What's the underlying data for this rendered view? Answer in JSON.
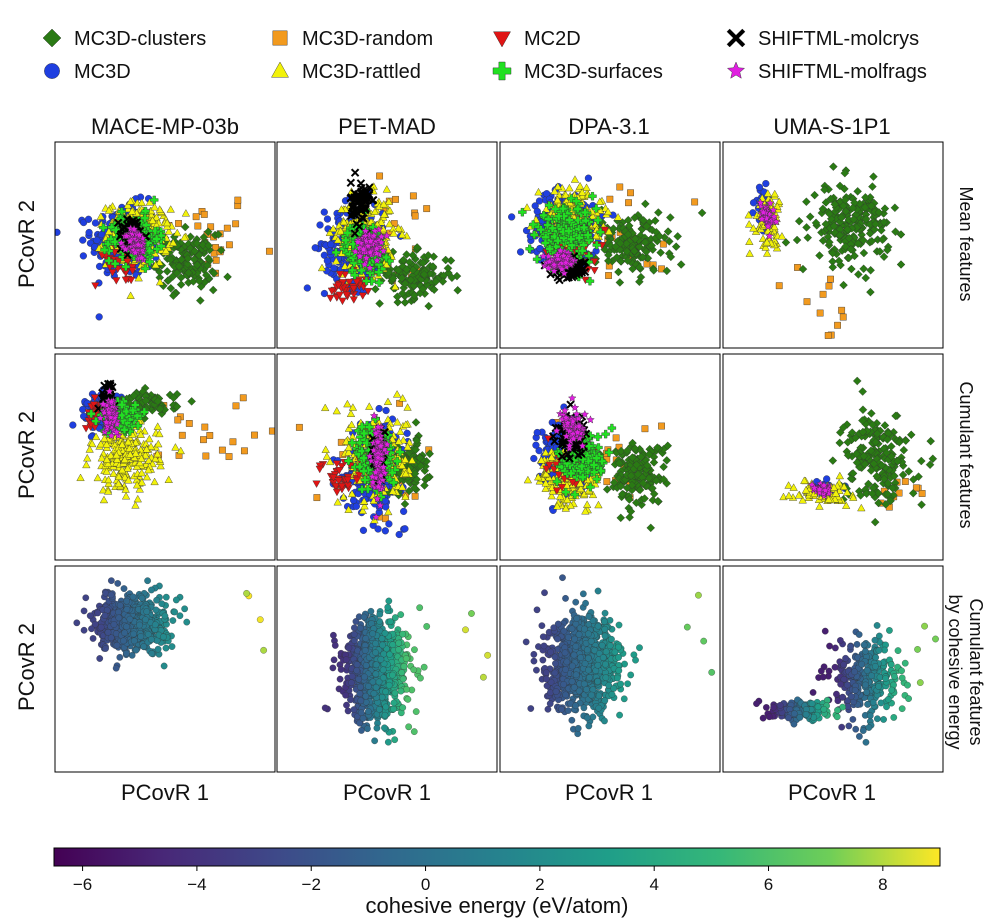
{
  "chart_data": {
    "type": "scatter",
    "panel_kind": "pcovr-projection-grid",
    "legend": [
      {
        "name": "MC3D-clusters",
        "marker": "diamond",
        "color": "#2a7a14"
      },
      {
        "name": "MC3D",
        "marker": "circle",
        "color": "#1f3fe0"
      },
      {
        "name": "MC3D-random",
        "marker": "square",
        "color": "#f29a1e"
      },
      {
        "name": "MC3D-rattled",
        "marker": "triangle-up",
        "color": "#f2f20a"
      },
      {
        "name": "MC2D",
        "marker": "triangle-down",
        "color": "#e01414"
      },
      {
        "name": "MC3D-surfaces",
        "marker": "plus",
        "color": "#22e022"
      },
      {
        "name": "SHIFTML-molcrys",
        "marker": "x",
        "color": "#000000"
      },
      {
        "name": "SHIFTML-molfrags",
        "marker": "star",
        "color": "#e020e0"
      }
    ],
    "columns": [
      "MACE-MP-03b",
      "PET-MAD",
      "DPA-3.1",
      "UMA-S-1P1"
    ],
    "rows": [
      {
        "label": "Mean features",
        "mode": "category"
      },
      {
        "label": "Cumulant features",
        "mode": "category"
      },
      {
        "label": "Cumulant features by cohesive energy",
        "mode": "energy"
      }
    ],
    "xlabel": "PCovR 1",
    "ylabel": "PCovR 2",
    "colorbar": {
      "label": "cohesive energy (eV/atom)",
      "range": [
        -6.5,
        9
      ],
      "ticks": [
        -6,
        -4,
        -2,
        0,
        2,
        4,
        6,
        8
      ],
      "tick_labels": [
        "−6",
        "−4",
        "−2",
        "0",
        "2",
        "4",
        "6",
        "8"
      ],
      "colormap": "viridis"
    },
    "axis_ranges_note": "Axes have no tick labels; coordinates are normalized 0-1 within each panel.",
    "panels": [
      {
        "column": "MACE-MP-03b",
        "row": "Mean features",
        "clouds": [
          {
            "series": "MC3D",
            "cx": 0.32,
            "cy": 0.52,
            "sx": 0.14,
            "sy": 0.16,
            "n": 280
          },
          {
            "series": "MC3D-rattled",
            "cx": 0.38,
            "cy": 0.55,
            "sx": 0.13,
            "sy": 0.14,
            "n": 260
          },
          {
            "series": "MC3D-surfaces",
            "cx": 0.36,
            "cy": 0.53,
            "sx": 0.1,
            "sy": 0.1,
            "n": 160
          },
          {
            "series": "MC2D",
            "cx": 0.3,
            "cy": 0.42,
            "sx": 0.12,
            "sy": 0.1,
            "n": 40
          },
          {
            "series": "MC3D-clusters",
            "cx": 0.6,
            "cy": 0.42,
            "sx": 0.12,
            "sy": 0.12,
            "n": 140
          },
          {
            "series": "MC3D-random",
            "cx": 0.7,
            "cy": 0.55,
            "sx": 0.18,
            "sy": 0.2,
            "n": 25
          },
          {
            "series": "SHIFTML-molcrys",
            "cx": 0.35,
            "cy": 0.55,
            "sx": 0.05,
            "sy": 0.08,
            "n": 60
          },
          {
            "series": "SHIFTML-molfrags",
            "cx": 0.37,
            "cy": 0.5,
            "sx": 0.04,
            "sy": 0.07,
            "n": 80
          }
        ]
      },
      {
        "column": "PET-MAD",
        "row": "Mean features",
        "clouds": [
          {
            "series": "MC3D",
            "cx": 0.35,
            "cy": 0.5,
            "sx": 0.12,
            "sy": 0.18,
            "n": 220
          },
          {
            "series": "MC3D-rattled",
            "cx": 0.4,
            "cy": 0.55,
            "sx": 0.12,
            "sy": 0.16,
            "n": 240
          },
          {
            "series": "MC3D-surfaces",
            "cx": 0.4,
            "cy": 0.48,
            "sx": 0.08,
            "sy": 0.12,
            "n": 150
          },
          {
            "series": "MC2D",
            "cx": 0.32,
            "cy": 0.3,
            "sx": 0.08,
            "sy": 0.06,
            "n": 40
          },
          {
            "series": "MC3D-clusters",
            "cx": 0.62,
            "cy": 0.35,
            "sx": 0.16,
            "sy": 0.1,
            "n": 140
          },
          {
            "series": "MC3D-random",
            "cx": 0.55,
            "cy": 0.55,
            "sx": 0.25,
            "sy": 0.25,
            "n": 25
          },
          {
            "series": "SHIFTML-molcrys",
            "cx": 0.38,
            "cy": 0.7,
            "sx": 0.04,
            "sy": 0.1,
            "n": 70
          },
          {
            "series": "SHIFTML-molfrags",
            "cx": 0.42,
            "cy": 0.5,
            "sx": 0.05,
            "sy": 0.07,
            "n": 80
          }
        ]
      },
      {
        "column": "DPA-3.1",
        "row": "Mean features",
        "clouds": [
          {
            "series": "MC3D",
            "cx": 0.3,
            "cy": 0.6,
            "sx": 0.14,
            "sy": 0.14,
            "n": 280
          },
          {
            "series": "MC3D-rattled",
            "cx": 0.32,
            "cy": 0.62,
            "sx": 0.13,
            "sy": 0.14,
            "n": 260
          },
          {
            "series": "MC3D-surfaces",
            "cx": 0.3,
            "cy": 0.55,
            "sx": 0.12,
            "sy": 0.12,
            "n": 180
          },
          {
            "series": "MC2D",
            "cx": 0.35,
            "cy": 0.45,
            "sx": 0.12,
            "sy": 0.1,
            "n": 40
          },
          {
            "series": "MC3D-clusters",
            "cx": 0.6,
            "cy": 0.5,
            "sx": 0.16,
            "sy": 0.13,
            "n": 160
          },
          {
            "series": "MC3D-random",
            "cx": 0.55,
            "cy": 0.55,
            "sx": 0.25,
            "sy": 0.25,
            "n": 20
          },
          {
            "series": "SHIFTML-molcrys",
            "cx": 0.32,
            "cy": 0.38,
            "sx": 0.08,
            "sy": 0.04,
            "n": 60
          },
          {
            "series": "SHIFTML-molfrags",
            "cx": 0.28,
            "cy": 0.42,
            "sx": 0.06,
            "sy": 0.04,
            "n": 80
          }
        ]
      },
      {
        "column": "UMA-S-1P1",
        "row": "Mean features",
        "clouds": [
          {
            "series": "MC3D-clusters",
            "cx": 0.58,
            "cy": 0.6,
            "sx": 0.16,
            "sy": 0.17,
            "n": 220
          },
          {
            "series": "MC3D-rattled",
            "cx": 0.2,
            "cy": 0.62,
            "sx": 0.06,
            "sy": 0.12,
            "n": 80
          },
          {
            "series": "MC3D",
            "cx": 0.18,
            "cy": 0.7,
            "sx": 0.03,
            "sy": 0.07,
            "n": 40
          },
          {
            "series": "SHIFTML-molfrags",
            "cx": 0.2,
            "cy": 0.65,
            "sx": 0.03,
            "sy": 0.06,
            "n": 40
          },
          {
            "series": "MC3D-random",
            "cx": 0.5,
            "cy": 0.2,
            "sx": 0.15,
            "sy": 0.15,
            "n": 12
          }
        ]
      },
      {
        "column": "MACE-MP-03b",
        "row": "Cumulant features",
        "clouds": [
          {
            "series": "MC3D-rattled",
            "cx": 0.32,
            "cy": 0.5,
            "sx": 0.14,
            "sy": 0.15,
            "n": 230
          },
          {
            "series": "MC3D",
            "cx": 0.22,
            "cy": 0.72,
            "sx": 0.07,
            "sy": 0.08,
            "n": 160
          },
          {
            "series": "MC3D-surfaces",
            "cx": 0.3,
            "cy": 0.7,
            "sx": 0.08,
            "sy": 0.07,
            "n": 140
          },
          {
            "series": "MC3D-clusters",
            "cx": 0.42,
            "cy": 0.76,
            "sx": 0.12,
            "sy": 0.05,
            "n": 90
          },
          {
            "series": "MC2D",
            "cx": 0.2,
            "cy": 0.7,
            "sx": 0.06,
            "sy": 0.06,
            "n": 30
          },
          {
            "series": "MC3D-random",
            "cx": 0.7,
            "cy": 0.6,
            "sx": 0.2,
            "sy": 0.2,
            "n": 20
          },
          {
            "series": "SHIFTML-molcrys",
            "cx": 0.24,
            "cy": 0.8,
            "sx": 0.03,
            "sy": 0.06,
            "n": 40
          },
          {
            "series": "SHIFTML-molfrags",
            "cx": 0.25,
            "cy": 0.7,
            "sx": 0.03,
            "sy": 0.07,
            "n": 70
          }
        ]
      },
      {
        "column": "PET-MAD",
        "row": "Cumulant features",
        "clouds": [
          {
            "series": "MC3D",
            "cx": 0.45,
            "cy": 0.45,
            "sx": 0.12,
            "sy": 0.2,
            "n": 240
          },
          {
            "series": "MC3D-rattled",
            "cx": 0.45,
            "cy": 0.5,
            "sx": 0.13,
            "sy": 0.2,
            "n": 260
          },
          {
            "series": "MC3D-surfaces",
            "cx": 0.45,
            "cy": 0.5,
            "sx": 0.08,
            "sy": 0.15,
            "n": 150
          },
          {
            "series": "MC2D",
            "cx": 0.3,
            "cy": 0.4,
            "sx": 0.08,
            "sy": 0.1,
            "n": 40
          },
          {
            "series": "MC3D-clusters",
            "cx": 0.6,
            "cy": 0.45,
            "sx": 0.08,
            "sy": 0.12,
            "n": 110
          },
          {
            "series": "MC3D-random",
            "cx": 0.45,
            "cy": 0.45,
            "sx": 0.25,
            "sy": 0.22,
            "n": 25
          },
          {
            "series": "SHIFTML-molcrys",
            "cx": 0.46,
            "cy": 0.5,
            "sx": 0.02,
            "sy": 0.12,
            "n": 60
          },
          {
            "series": "SHIFTML-molfrags",
            "cx": 0.46,
            "cy": 0.5,
            "sx": 0.025,
            "sy": 0.15,
            "n": 90
          }
        ]
      },
      {
        "column": "DPA-3.1",
        "row": "Cumulant features",
        "clouds": [
          {
            "series": "MC3D",
            "cx": 0.28,
            "cy": 0.5,
            "sx": 0.1,
            "sy": 0.15,
            "n": 220
          },
          {
            "series": "MC3D-rattled",
            "cx": 0.32,
            "cy": 0.4,
            "sx": 0.12,
            "sy": 0.13,
            "n": 220
          },
          {
            "series": "MC3D-surfaces",
            "cx": 0.38,
            "cy": 0.5,
            "sx": 0.1,
            "sy": 0.12,
            "n": 150
          },
          {
            "series": "MC2D",
            "cx": 0.3,
            "cy": 0.45,
            "sx": 0.1,
            "sy": 0.1,
            "n": 30
          },
          {
            "series": "MC3D-clusters",
            "cx": 0.62,
            "cy": 0.42,
            "sx": 0.12,
            "sy": 0.14,
            "n": 160
          },
          {
            "series": "MC3D-random",
            "cx": 0.5,
            "cy": 0.55,
            "sx": 0.22,
            "sy": 0.2,
            "n": 18
          },
          {
            "series": "SHIFTML-molcrys",
            "cx": 0.32,
            "cy": 0.6,
            "sx": 0.07,
            "sy": 0.1,
            "n": 80
          },
          {
            "series": "SHIFTML-molfrags",
            "cx": 0.34,
            "cy": 0.64,
            "sx": 0.05,
            "sy": 0.07,
            "n": 70
          }
        ]
      },
      {
        "column": "UMA-S-1P1",
        "row": "Cumulant features",
        "clouds": [
          {
            "series": "MC3D-clusters",
            "cx": 0.7,
            "cy": 0.5,
            "sx": 0.14,
            "sy": 0.2,
            "n": 200
          },
          {
            "series": "MC3D-rattled",
            "cx": 0.45,
            "cy": 0.33,
            "sx": 0.12,
            "sy": 0.05,
            "n": 80
          },
          {
            "series": "MC3D",
            "cx": 0.45,
            "cy": 0.35,
            "sx": 0.06,
            "sy": 0.03,
            "n": 30
          },
          {
            "series": "SHIFTML-molfrags",
            "cx": 0.45,
            "cy": 0.34,
            "sx": 0.04,
            "sy": 0.02,
            "n": 40
          },
          {
            "series": "MC3D-random",
            "cx": 0.8,
            "cy": 0.3,
            "sx": 0.12,
            "sy": 0.1,
            "n": 10
          }
        ]
      },
      {
        "column": "MACE-MP-03b",
        "row": "Cumulant features by cohesive energy",
        "energy_gradient": {
          "low": -3,
          "high": 2
        },
        "outlier_energy_high": 9,
        "clouds": [
          {
            "cx": 0.35,
            "cy": 0.72,
            "sx": 0.14,
            "sy": 0.12,
            "n": 700
          }
        ]
      },
      {
        "column": "PET-MAD",
        "row": "Cumulant features by cohesive energy",
        "energy_gradient": {
          "low": -4,
          "high": 6
        },
        "outlier_energy_high": 9,
        "clouds": [
          {
            "cx": 0.45,
            "cy": 0.5,
            "sx": 0.13,
            "sy": 0.22,
            "n": 900
          }
        ]
      },
      {
        "column": "DPA-3.1",
        "row": "Cumulant features by cohesive energy",
        "energy_gradient": {
          "low": -3,
          "high": 3
        },
        "outlier_energy_high": 8,
        "clouds": [
          {
            "cx": 0.38,
            "cy": 0.52,
            "sx": 0.15,
            "sy": 0.2,
            "n": 900
          }
        ]
      },
      {
        "column": "UMA-S-1P1",
        "row": "Cumulant features by cohesive energy",
        "energy_gradient": {
          "low": -5,
          "high": 5
        },
        "outlier_energy_high": 9,
        "clouds": [
          {
            "cx": 0.65,
            "cy": 0.45,
            "sx": 0.14,
            "sy": 0.18,
            "n": 300
          },
          {
            "cx": 0.35,
            "cy": 0.3,
            "sx": 0.12,
            "sy": 0.04,
            "n": 200
          }
        ]
      }
    ]
  }
}
